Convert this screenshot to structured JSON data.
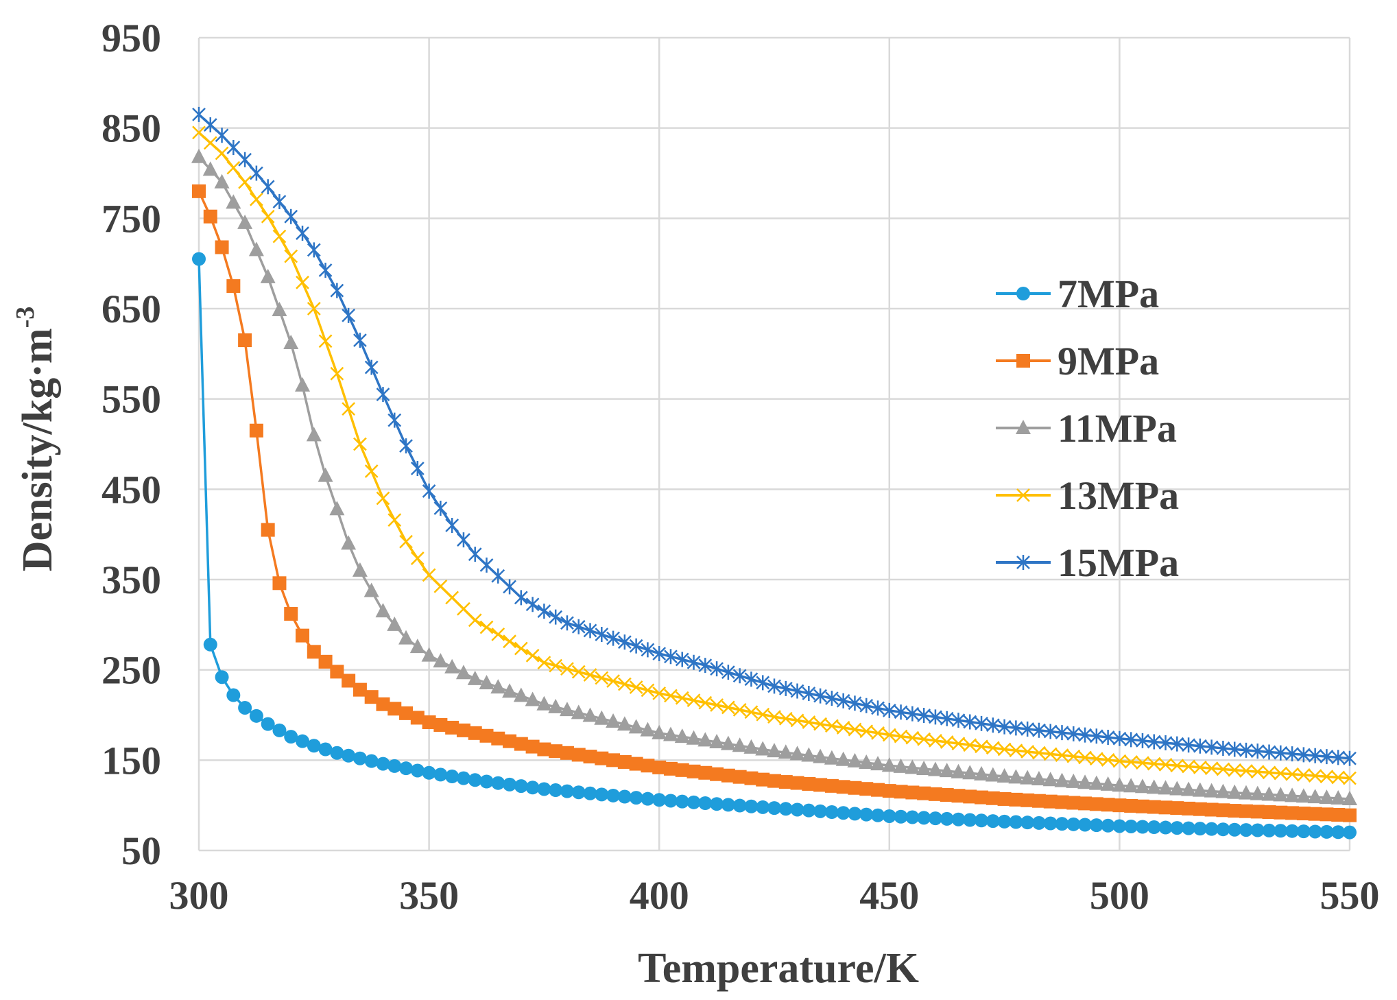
{
  "chart_data": {
    "type": "line",
    "title": "",
    "xlabel": "Temperature/K",
    "ylabel": "Density/kg·m",
    "ylabel_superscript": "-3",
    "xlim": [
      300,
      550
    ],
    "ylim": [
      50,
      950
    ],
    "xticks": [
      300,
      350,
      400,
      450,
      500,
      550
    ],
    "yticks": [
      50,
      150,
      250,
      350,
      450,
      550,
      650,
      750,
      850,
      950
    ],
    "grid": true,
    "legend_position": "right",
    "x_step": 2.5,
    "series": [
      {
        "name": "7MPa",
        "marker": "circle",
        "color": "#1f9ddb",
        "anchors": [
          [
            300,
            705
          ],
          [
            302.5,
            278
          ],
          [
            305,
            242
          ],
          [
            307.5,
            222
          ],
          [
            310,
            208
          ],
          [
            315,
            190
          ],
          [
            320,
            176
          ],
          [
            325,
            166
          ],
          [
            330,
            158
          ],
          [
            340,
            146
          ],
          [
            350,
            136
          ],
          [
            360,
            128
          ],
          [
            375,
            118
          ],
          [
            400,
            106
          ],
          [
            425,
            97
          ],
          [
            450,
            88
          ],
          [
            475,
            82
          ],
          [
            500,
            77
          ],
          [
            525,
            73
          ],
          [
            550,
            70
          ]
        ]
      },
      {
        "name": "9MPa",
        "marker": "square",
        "color": "#f47a20",
        "anchors": [
          [
            300,
            780
          ],
          [
            302.5,
            752
          ],
          [
            305,
            718
          ],
          [
            307.5,
            675
          ],
          [
            310,
            615
          ],
          [
            312.5,
            515
          ],
          [
            315,
            405
          ],
          [
            317.5,
            346
          ],
          [
            320,
            312
          ],
          [
            322.5,
            288
          ],
          [
            325,
            270
          ],
          [
            330,
            248
          ],
          [
            335,
            228
          ],
          [
            340,
            212
          ],
          [
            350,
            192
          ],
          [
            360,
            180
          ],
          [
            375,
            162
          ],
          [
            400,
            142
          ],
          [
            425,
            127
          ],
          [
            450,
            116
          ],
          [
            475,
            107
          ],
          [
            500,
            100
          ],
          [
            525,
            94
          ],
          [
            550,
            89
          ]
        ]
      },
      {
        "name": "11MPa",
        "marker": "triangle",
        "color": "#9e9e9e",
        "anchors": [
          [
            300,
            818
          ],
          [
            305,
            790
          ],
          [
            310,
            745
          ],
          [
            315,
            685
          ],
          [
            320,
            612
          ],
          [
            322.5,
            565
          ],
          [
            325,
            510
          ],
          [
            327.5,
            465
          ],
          [
            330,
            428
          ],
          [
            332.5,
            390
          ],
          [
            335,
            360
          ],
          [
            340,
            315
          ],
          [
            345,
            285
          ],
          [
            350,
            266
          ],
          [
            360,
            240
          ],
          [
            375,
            212
          ],
          [
            400,
            180
          ],
          [
            425,
            160
          ],
          [
            450,
            144
          ],
          [
            475,
            132
          ],
          [
            500,
            122
          ],
          [
            525,
            114
          ],
          [
            550,
            107
          ]
        ]
      },
      {
        "name": "13MPa",
        "marker": "x",
        "color": "#ffbf00",
        "anchors": [
          [
            300,
            845
          ],
          [
            305,
            822
          ],
          [
            310,
            790
          ],
          [
            315,
            752
          ],
          [
            320,
            708
          ],
          [
            325,
            650
          ],
          [
            330,
            578
          ],
          [
            335,
            500
          ],
          [
            340,
            440
          ],
          [
            345,
            392
          ],
          [
            350,
            355
          ],
          [
            360,
            305
          ],
          [
            375,
            258
          ],
          [
            400,
            224
          ],
          [
            425,
            198
          ],
          [
            450,
            178
          ],
          [
            475,
            162
          ],
          [
            500,
            149
          ],
          [
            525,
            139
          ],
          [
            550,
            130
          ]
        ]
      },
      {
        "name": "15MPa",
        "marker": "star",
        "color": "#2e75c5",
        "anchors": [
          [
            300,
            865
          ],
          [
            305,
            842
          ],
          [
            310,
            815
          ],
          [
            315,
            785
          ],
          [
            320,
            752
          ],
          [
            325,
            715
          ],
          [
            330,
            670
          ],
          [
            335,
            615
          ],
          [
            340,
            555
          ],
          [
            345,
            498
          ],
          [
            350,
            448
          ],
          [
            355,
            410
          ],
          [
            360,
            378
          ],
          [
            370,
            330
          ],
          [
            375,
            315
          ],
          [
            380,
            302
          ],
          [
            390,
            285
          ],
          [
            400,
            268
          ],
          [
            410,
            255
          ],
          [
            425,
            232
          ],
          [
            450,
            205
          ],
          [
            475,
            187
          ],
          [
            500,
            174
          ],
          [
            525,
            162
          ],
          [
            550,
            152
          ]
        ]
      }
    ]
  }
}
